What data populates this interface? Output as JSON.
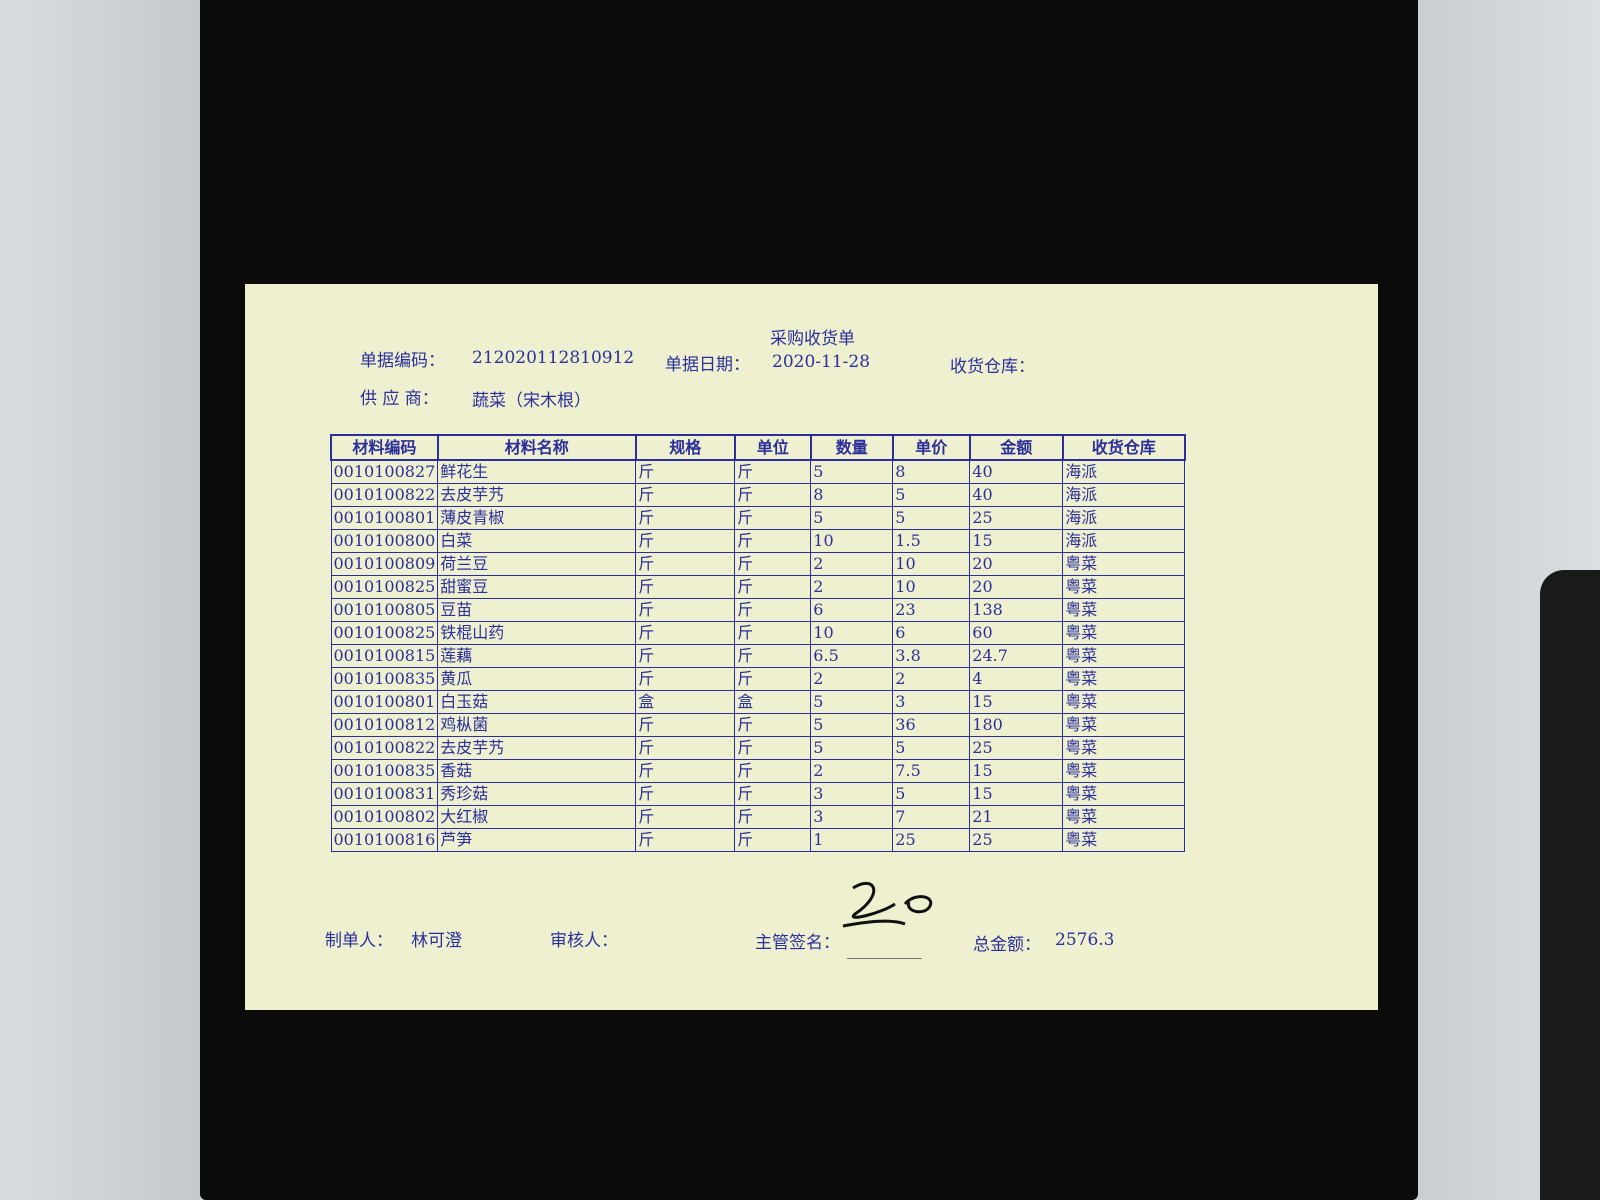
{
  "header": {
    "title": "采购收货单",
    "fields": [
      {
        "label": "单据编码：",
        "value": "212020112810912"
      },
      {
        "label": "单据日期：",
        "value": "2020-11-28"
      },
      {
        "label": "收货仓库："
      },
      {
        "label": "供 应 商：",
        "value": "蔬菜（宋木根）"
      }
    ]
  },
  "table": {
    "columns": [
      "材料编码",
      "材料名称",
      "规格",
      "单位",
      "数量",
      "单价",
      "金额",
      "收货仓库"
    ],
    "rows": [
      [
        "0010100827",
        "鲜花生",
        "斤",
        "斤",
        "5",
        "8",
        "40",
        "海派"
      ],
      [
        "0010100822",
        "去皮芋艿",
        "斤",
        "斤",
        "8",
        "5",
        "40",
        "海派"
      ],
      [
        "0010100801",
        "薄皮青椒",
        "斤",
        "斤",
        "5",
        "5",
        "25",
        "海派"
      ],
      [
        "0010100800",
        "白菜",
        "斤",
        "斤",
        "10",
        "1.5",
        "15",
        "海派"
      ],
      [
        "0010100809",
        "荷兰豆",
        "斤",
        "斤",
        "2",
        "10",
        "20",
        "粤菜"
      ],
      [
        "0010100825",
        "甜蜜豆",
        "斤",
        "斤",
        "2",
        "10",
        "20",
        "粤菜"
      ],
      [
        "0010100805",
        "豆苗",
        "斤",
        "斤",
        "6",
        "23",
        "138",
        "粤菜"
      ],
      [
        "0010100825",
        "铁棍山药",
        "斤",
        "斤",
        "10",
        "6",
        "60",
        "粤菜"
      ],
      [
        "0010100815",
        "莲藕",
        "斤",
        "斤",
        "6.5",
        "3.8",
        "24.7",
        "粤菜"
      ],
      [
        "0010100835",
        "黄瓜",
        "斤",
        "斤",
        "2",
        "2",
        "4",
        "粤菜"
      ],
      [
        "0010100801",
        "白玉菇",
        "盒",
        "盒",
        "5",
        "3",
        "15",
        "粤菜"
      ],
      [
        "0010100812",
        "鸡枞菌",
        "斤",
        "斤",
        "5",
        "36",
        "180",
        "粤菜"
      ],
      [
        "0010100822",
        "去皮芋艿",
        "斤",
        "斤",
        "5",
        "5",
        "25",
        "粤菜"
      ],
      [
        "0010100835",
        "香菇",
        "斤",
        "斤",
        "2",
        "7.5",
        "15",
        "粤菜"
      ],
      [
        "0010100831",
        "秀珍菇",
        "斤",
        "斤",
        "3",
        "5",
        "15",
        "粤菜"
      ],
      [
        "0010100802",
        "大红椒",
        "斤",
        "斤",
        "3",
        "7",
        "21",
        "粤菜"
      ],
      [
        "0010100816",
        "芦笋",
        "斤",
        "斤",
        "1",
        "25",
        "25",
        "粤菜"
      ]
    ]
  },
  "footer": {
    "fields": [
      {
        "label": "制单人：",
        "value": "林可澄"
      },
      {
        "label": "审核人："
      },
      {
        "label": "主管签名："
      },
      {
        "label": "总金额：",
        "value": "2576.3"
      }
    ]
  }
}
